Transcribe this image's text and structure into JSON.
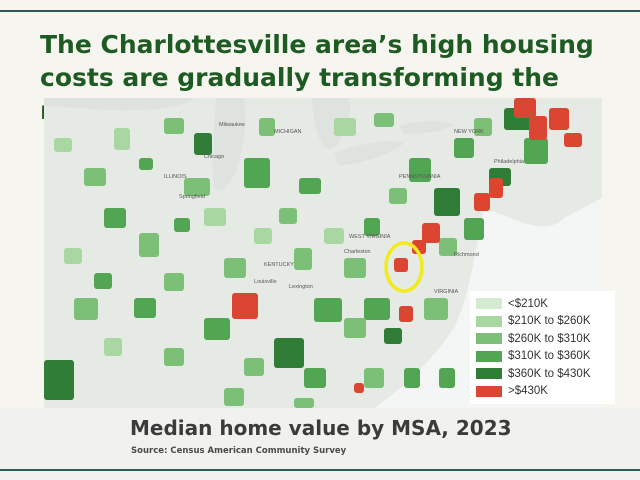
{
  "title": "The Charlottesville area’s high housing costs are gradually transforming the region",
  "map": {
    "state_labels": [
      "ILLINOIS",
      "KENTUCKY",
      "WEST VIRGINIA",
      "VIRGINIA",
      "PENNSYLVANIA",
      "NEW YORK",
      "MICHIGAN"
    ],
    "city_labels": [
      "Chicago",
      "Springfield",
      "Charleston",
      "Milwaukee",
      "Lexington",
      "Louisville",
      "Richmond",
      "Philadelphia"
    ],
    "highlight": "Charlottesville, VA",
    "highlight_color": "#f2ea1c"
  },
  "legend": {
    "items": [
      {
        "label": "<$210K",
        "color": "#d4ebd2"
      },
      {
        "label": "$210K to $260K",
        "color": "#a8d7a1"
      },
      {
        "label": "$260K to $310K",
        "color": "#7cc078"
      },
      {
        "label": "$310K to $360K",
        "color": "#52a552"
      },
      {
        "label": "$360K to $430K",
        "color": "#2f7d36"
      },
      {
        "label": ">$430K",
        "color": "#db4532"
      }
    ]
  },
  "caption": "Median home value by MSA, 2023",
  "source": "Source: Census American Community Survey",
  "colors": {
    "title": "#1e5b22",
    "water": "#dfe3df",
    "ocean": "#f4f6f6",
    "accent_line": "#2e5a55"
  }
}
